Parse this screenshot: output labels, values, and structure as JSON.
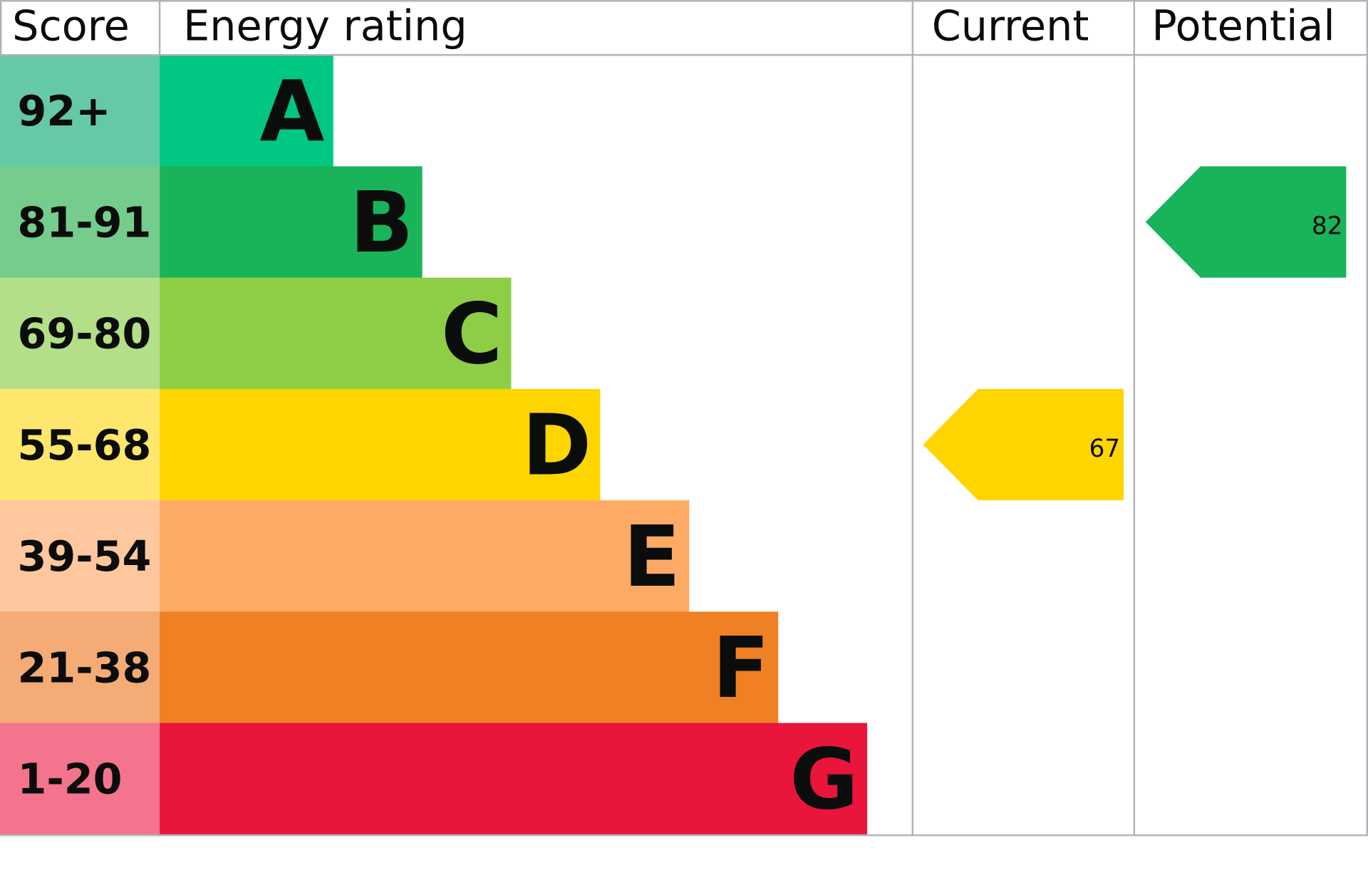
{
  "chart_data": {
    "type": "bar",
    "headers": {
      "score": "Score",
      "rating": "Energy rating",
      "current": "Current",
      "potential": "Potential"
    },
    "bands": [
      {
        "letter": "A",
        "range": "92+",
        "color": "#00c781",
        "score_color": "#66c9a5"
      },
      {
        "letter": "B",
        "range": "81-91",
        "color": "#19b459",
        "score_color": "#75cc8c"
      },
      {
        "letter": "C",
        "range": "69-80",
        "color": "#8dce46",
        "score_color": "#b3df88"
      },
      {
        "letter": "D",
        "range": "55-68",
        "color": "#ffd500",
        "score_color": "#ffe66c"
      },
      {
        "letter": "E",
        "range": "39-54",
        "color": "#fcaa65",
        "score_color": "#fec79d"
      },
      {
        "letter": "F",
        "range": "21-38",
        "color": "#ef8023",
        "score_color": "#f4ab75"
      },
      {
        "letter": "G",
        "range": "1-20",
        "color": "#e9153b",
        "score_color": "#f3748c"
      }
    ],
    "current": {
      "value": "67",
      "band": "D"
    },
    "potential": {
      "value": "82",
      "band": "B"
    },
    "grid_color": "#b1b4b6"
  }
}
